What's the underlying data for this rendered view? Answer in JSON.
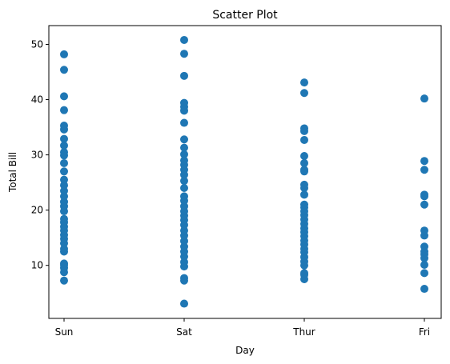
{
  "chart_data": {
    "type": "scatter",
    "title": "Scatter Plot",
    "xlabel": "Day",
    "ylabel": "Total Bill",
    "categories": [
      "Sun",
      "Sat",
      "Thur",
      "Fri"
    ],
    "yticks": [
      10,
      20,
      30,
      40,
      50
    ],
    "ylim": [
      0.4,
      53.4
    ],
    "grid": false,
    "legend": "none",
    "colors": {
      "marker": "#1f77b4",
      "axis": "#000000",
      "background": "#ffffff"
    },
    "series": [
      {
        "points": [
          {
            "x": "Sun",
            "y": 7.25
          },
          {
            "x": "Sun",
            "y": 8.77
          },
          {
            "x": "Sun",
            "y": 9.55
          },
          {
            "x": "Sun",
            "y": 10.07
          },
          {
            "x": "Sun",
            "y": 10.33
          },
          {
            "x": "Sun",
            "y": 12.5
          },
          {
            "x": "Sun",
            "y": 13.0
          },
          {
            "x": "Sun",
            "y": 14.0
          },
          {
            "x": "Sun",
            "y": 14.8
          },
          {
            "x": "Sun",
            "y": 15.5
          },
          {
            "x": "Sun",
            "y": 16.3
          },
          {
            "x": "Sun",
            "y": 17.0
          },
          {
            "x": "Sun",
            "y": 17.8
          },
          {
            "x": "Sun",
            "y": 18.4
          },
          {
            "x": "Sun",
            "y": 19.8
          },
          {
            "x": "Sun",
            "y": 20.7
          },
          {
            "x": "Sun",
            "y": 21.5
          },
          {
            "x": "Sun",
            "y": 22.5
          },
          {
            "x": "Sun",
            "y": 23.5
          },
          {
            "x": "Sun",
            "y": 24.5
          },
          {
            "x": "Sun",
            "y": 25.5
          },
          {
            "x": "Sun",
            "y": 27.0
          },
          {
            "x": "Sun",
            "y": 28.5
          },
          {
            "x": "Sun",
            "y": 29.9
          },
          {
            "x": "Sun",
            "y": 30.5
          },
          {
            "x": "Sun",
            "y": 31.7
          },
          {
            "x": "Sun",
            "y": 32.9
          },
          {
            "x": "Sun",
            "y": 34.6
          },
          {
            "x": "Sun",
            "y": 35.3
          },
          {
            "x": "Sun",
            "y": 38.1
          },
          {
            "x": "Sun",
            "y": 40.6
          },
          {
            "x": "Sun",
            "y": 45.4
          },
          {
            "x": "Sun",
            "y": 48.2
          },
          {
            "x": "Sat",
            "y": 3.07
          },
          {
            "x": "Sat",
            "y": 7.25
          },
          {
            "x": "Sat",
            "y": 7.7
          },
          {
            "x": "Sat",
            "y": 9.8
          },
          {
            "x": "Sat",
            "y": 10.6
          },
          {
            "x": "Sat",
            "y": 11.6
          },
          {
            "x": "Sat",
            "y": 12.5
          },
          {
            "x": "Sat",
            "y": 13.4
          },
          {
            "x": "Sat",
            "y": 14.4
          },
          {
            "x": "Sat",
            "y": 15.4
          },
          {
            "x": "Sat",
            "y": 16.3
          },
          {
            "x": "Sat",
            "y": 17.3
          },
          {
            "x": "Sat",
            "y": 18.2
          },
          {
            "x": "Sat",
            "y": 19.0
          },
          {
            "x": "Sat",
            "y": 19.8
          },
          {
            "x": "Sat",
            "y": 20.7
          },
          {
            "x": "Sat",
            "y": 21.7
          },
          {
            "x": "Sat",
            "y": 22.5
          },
          {
            "x": "Sat",
            "y": 24.0
          },
          {
            "x": "Sat",
            "y": 25.3
          },
          {
            "x": "Sat",
            "y": 26.4
          },
          {
            "x": "Sat",
            "y": 27.3
          },
          {
            "x": "Sat",
            "y": 28.2
          },
          {
            "x": "Sat",
            "y": 29.0
          },
          {
            "x": "Sat",
            "y": 30.1
          },
          {
            "x": "Sat",
            "y": 31.3
          },
          {
            "x": "Sat",
            "y": 32.8
          },
          {
            "x": "Sat",
            "y": 35.8
          },
          {
            "x": "Sat",
            "y": 38.0
          },
          {
            "x": "Sat",
            "y": 38.7
          },
          {
            "x": "Sat",
            "y": 39.4
          },
          {
            "x": "Sat",
            "y": 44.3
          },
          {
            "x": "Sat",
            "y": 48.3
          },
          {
            "x": "Sat",
            "y": 50.8
          },
          {
            "x": "Thur",
            "y": 7.5
          },
          {
            "x": "Thur",
            "y": 8.3
          },
          {
            "x": "Thur",
            "y": 8.6
          },
          {
            "x": "Thur",
            "y": 10.0
          },
          {
            "x": "Thur",
            "y": 10.7
          },
          {
            "x": "Thur",
            "y": 11.5
          },
          {
            "x": "Thur",
            "y": 12.4
          },
          {
            "x": "Thur",
            "y": 13.0
          },
          {
            "x": "Thur",
            "y": 13.8
          },
          {
            "x": "Thur",
            "y": 14.5
          },
          {
            "x": "Thur",
            "y": 15.3
          },
          {
            "x": "Thur",
            "y": 16.0
          },
          {
            "x": "Thur",
            "y": 16.7
          },
          {
            "x": "Thur",
            "y": 17.5
          },
          {
            "x": "Thur",
            "y": 18.3
          },
          {
            "x": "Thur",
            "y": 19.1
          },
          {
            "x": "Thur",
            "y": 19.8
          },
          {
            "x": "Thur",
            "y": 20.5
          },
          {
            "x": "Thur",
            "y": 21.0
          },
          {
            "x": "Thur",
            "y": 22.8
          },
          {
            "x": "Thur",
            "y": 24.0
          },
          {
            "x": "Thur",
            "y": 24.6
          },
          {
            "x": "Thur",
            "y": 27.0
          },
          {
            "x": "Thur",
            "y": 27.3
          },
          {
            "x": "Thur",
            "y": 28.5
          },
          {
            "x": "Thur",
            "y": 29.8
          },
          {
            "x": "Thur",
            "y": 32.7
          },
          {
            "x": "Thur",
            "y": 34.3
          },
          {
            "x": "Thur",
            "y": 34.8
          },
          {
            "x": "Thur",
            "y": 41.2
          },
          {
            "x": "Thur",
            "y": 43.1
          },
          {
            "x": "Fri",
            "y": 5.75
          },
          {
            "x": "Fri",
            "y": 8.6
          },
          {
            "x": "Fri",
            "y": 10.1
          },
          {
            "x": "Fri",
            "y": 11.3
          },
          {
            "x": "Fri",
            "y": 12.0
          },
          {
            "x": "Fri",
            "y": 12.5
          },
          {
            "x": "Fri",
            "y": 13.4
          },
          {
            "x": "Fri",
            "y": 15.4
          },
          {
            "x": "Fri",
            "y": 16.3
          },
          {
            "x": "Fri",
            "y": 21.0
          },
          {
            "x": "Fri",
            "y": 22.5
          },
          {
            "x": "Fri",
            "y": 22.8
          },
          {
            "x": "Fri",
            "y": 27.3
          },
          {
            "x": "Fri",
            "y": 28.9
          },
          {
            "x": "Fri",
            "y": 40.2
          }
        ]
      }
    ]
  }
}
